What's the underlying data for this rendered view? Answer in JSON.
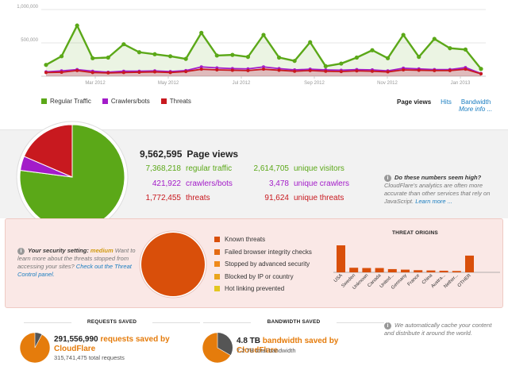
{
  "colors": {
    "regular": "#5ba818",
    "crawlers": "#a31cc9",
    "threats": "#c8191f",
    "orange": "#d94f0a",
    "cache_orange": "#e57c0c"
  },
  "chart_data": [
    {
      "type": "line",
      "title": "",
      "x_ticks": [
        "Mar 2012",
        "May 2012",
        "Jul 2012",
        "Sep 2012",
        "Nov 2012",
        "Jan 2013"
      ],
      "y_ticks": [
        "1,000,000",
        "500,000"
      ],
      "ylim": [
        0,
        1000000
      ],
      "grid": true,
      "series": [
        {
          "name": "Regular Traffic",
          "values": [
            170000,
            300000,
            760000,
            270000,
            280000,
            480000,
            360000,
            330000,
            300000,
            260000,
            650000,
            310000,
            320000,
            290000,
            620000,
            280000,
            230000,
            510000,
            150000,
            190000,
            280000,
            390000,
            270000,
            620000,
            290000,
            560000,
            420000,
            400000,
            110000
          ]
        },
        {
          "name": "Crawlers/bots",
          "values": [
            65000,
            80000,
            100000,
            75000,
            60000,
            75000,
            75000,
            80000,
            70000,
            85000,
            140000,
            125000,
            115000,
            110000,
            140000,
            115000,
            95000,
            105000,
            95000,
            90000,
            100000,
            95000,
            80000,
            120000,
            110000,
            100000,
            100000,
            130000,
            40000
          ]
        },
        {
          "name": "Threats",
          "values": [
            55000,
            60000,
            85000,
            55000,
            50000,
            55000,
            60000,
            65000,
            55000,
            70000,
            105000,
            95000,
            90000,
            85000,
            105000,
            90000,
            75000,
            85000,
            75000,
            70000,
            80000,
            75000,
            65000,
            95000,
            90000,
            85000,
            85000,
            105000,
            35000
          ]
        }
      ]
    },
    {
      "type": "pie",
      "values": [
        7368218,
        421922,
        1772455
      ],
      "labels": [
        "regular traffic",
        "crawlers/bots",
        "threats"
      ]
    },
    {
      "type": "pie",
      "values": [
        100,
        0,
        0,
        0,
        0
      ],
      "labels": [
        "Known threats",
        "Failed browser integrity checks",
        "Stopped by advanced security",
        "Blocked by IP or country",
        "Hot linking prevented"
      ]
    },
    {
      "type": "bar",
      "title": "THREAT ORIGINS",
      "categories": [
        "USA",
        "Sweden",
        "Unknown",
        "Canada",
        "United...",
        "Germany",
        "France",
        "China",
        "Austra...",
        "Nether...",
        "OTHER"
      ],
      "values": [
        100,
        17,
        16,
        16,
        12,
        10,
        8,
        7,
        6,
        5,
        62
      ]
    }
  ],
  "legend": [
    {
      "label": "Regular Traffic",
      "color": "#5ba818"
    },
    {
      "label": "Crawlers/bots",
      "color": "#a31cc9"
    },
    {
      "label": "Threats",
      "color": "#c8191f"
    }
  ],
  "metric_tabs": {
    "page_views": "Page views",
    "hits": "Hits",
    "bandwidth": "Bandwidth",
    "more_info": "More info ..."
  },
  "stats": {
    "total": "9,562,595",
    "total_label": "Page views",
    "regular": "7,368,218",
    "regular_label": "regular traffic",
    "crawlers": "421,922",
    "crawlers_label": "crawlers/bots",
    "threats": "1,772,455",
    "threats_label": "threats",
    "unique_visitors": "2,614,705",
    "unique_visitors_label": "unique visitors",
    "unique_crawlers": "3,478",
    "unique_crawlers_label": "unique crawlers",
    "unique_threats": "91,624",
    "unique_threats_label": "unique threats"
  },
  "seem_high": {
    "question": "Do these numbers seem high?",
    "body": "CloudFlare's analytics are often more accurate than other services that rely on JavaScript.",
    "link": "Learn more ..."
  },
  "security": {
    "setting_prefix": "Your security setting:",
    "level": "medium",
    "body": "Want to learn more about the threats stopped from accessing your sites?",
    "link": "Check out the Threat Control panel."
  },
  "threat_legend": [
    {
      "label": "Known threats",
      "color": "#d94f0a"
    },
    {
      "label": "Failed browser integrity checks",
      "color": "#e36a12"
    },
    {
      "label": "Stopped by advanced security",
      "color": "#ef8a1a"
    },
    {
      "label": "Blocked by IP or country",
      "color": "#eaa51c"
    },
    {
      "label": "Hot linking prevented",
      "color": "#e3c720"
    }
  ],
  "requests_saved": {
    "heading": "REQUESTS SAVED",
    "value": "291,556,990",
    "label": "requests saved by CloudFlare",
    "sub_value": "315,741,475",
    "sub_label": "total requests",
    "fraction": 0.923
  },
  "bandwidth_saved": {
    "heading": "BANDWIDTH SAVED",
    "value": "4.8 TB",
    "label": "bandwidth saved by CloudFlare",
    "sub_value": "7.2 TB",
    "sub_label": "total bandwidth",
    "fraction": 0.667
  },
  "cache_note": "We automatically cache your content and distribute it around the world."
}
